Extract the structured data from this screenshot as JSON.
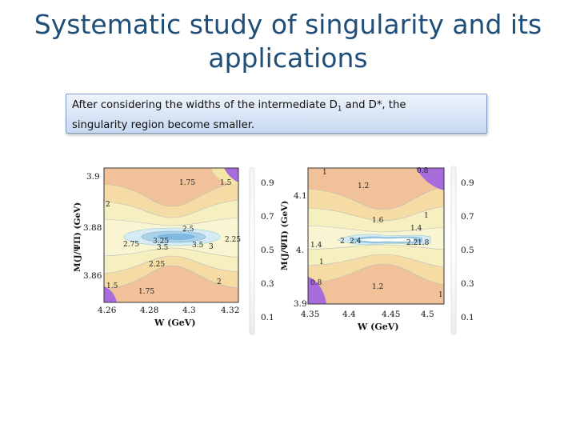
{
  "slide": {
    "title_line1": "Systematic study of singularity and its",
    "title_line2": "applications"
  },
  "callout": {
    "text_before_sub": "After considering the widths of the intermediate D",
    "subscript": "1",
    "text_after_sub": " and D*, the",
    "line2": "singularity region become smaller."
  },
  "figure": {
    "colors": {
      "outer": "#f1c29a",
      "mid": "#f5dca4",
      "inner": "#f6efc0",
      "center_light": "#d6ebf5",
      "center_blue": "#7fb7de",
      "corner_purple": "#a76bdc"
    },
    "plot_left": {
      "x_label": "W (GeV)",
      "y_label": "M(J/ΨΠ) (GeV)",
      "x_ticks": [
        "4.26",
        "4.28",
        "4.3",
        "4.32"
      ],
      "y_ticks": [
        "3.9",
        "3.88",
        "3.86"
      ],
      "contour_labels": [
        "1.75",
        "1.5",
        "2",
        "2.5",
        "2.75",
        "3.25",
        "3.5",
        "3.5",
        "3",
        "2.25",
        "2.25",
        "2",
        "1.5",
        "1.75"
      ],
      "colorbar_ticks": [
        "0.9",
        "0.7",
        "0.5",
        "0.3",
        "0.1"
      ]
    },
    "plot_right": {
      "x_label": "W (GeV)",
      "y_label": "M(J/ΨΠ) (GeV)",
      "x_ticks": [
        "4.35",
        "4.4",
        "4.45",
        "4.5"
      ],
      "y_ticks": [
        "4.1",
        "4.",
        "3.9"
      ],
      "contour_labels": [
        "1",
        "0.8",
        "1.2",
        "1",
        "1.6",
        "1.4",
        "1.4",
        "2",
        "2.4",
        "2.2",
        "1.8",
        "1",
        "0.8",
        "1.2",
        "1"
      ],
      "colorbar_ticks": [
        "0.9",
        "0.7",
        "0.5",
        "0.3",
        "0.1"
      ]
    }
  }
}
